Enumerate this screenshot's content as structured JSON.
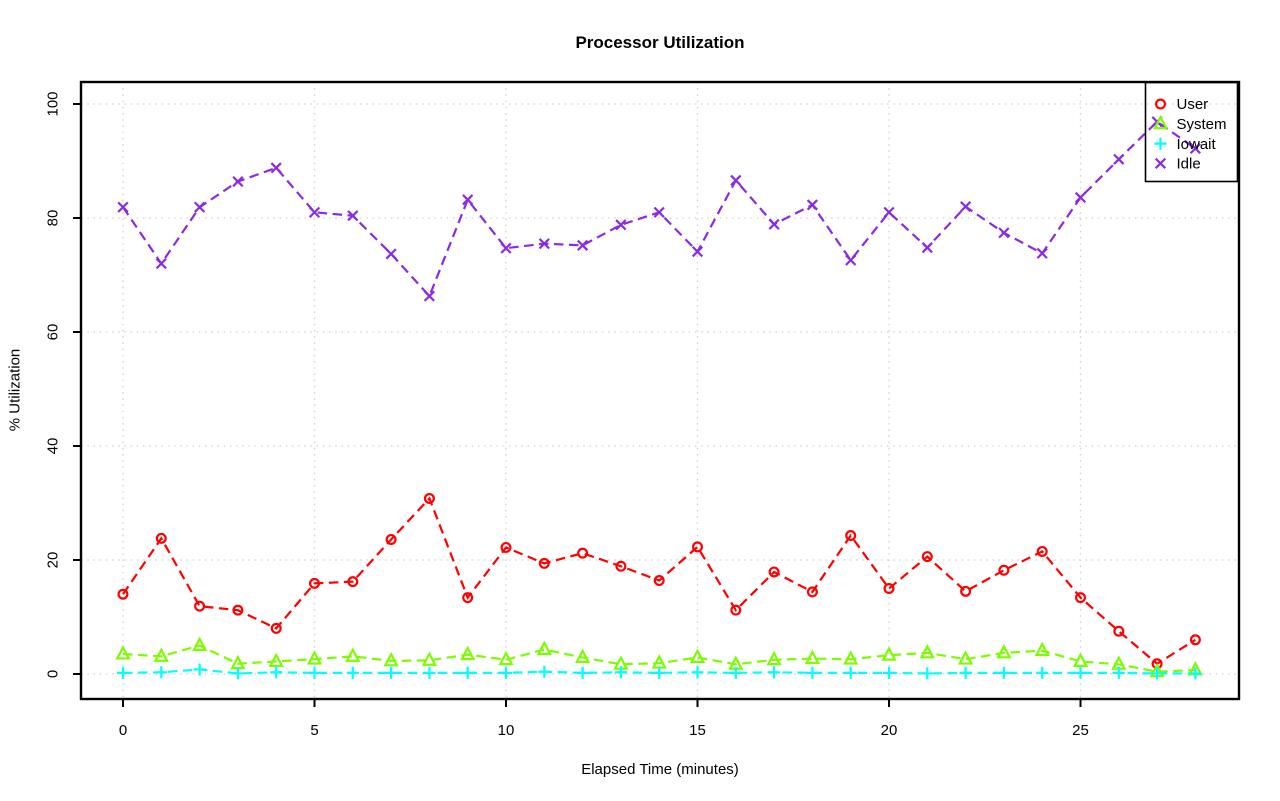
{
  "figure": {
    "title": "Processor Utilization",
    "x_axis_label": "Elapsed Time (minutes)",
    "y_axis_label": "% Utilization"
  },
  "colors": {
    "background": "#ffffff",
    "axis": "#000000",
    "grid": "#d2d2d2",
    "user": "#ff0000",
    "system": "#7cfc00",
    "iowait": "#00ffff",
    "idle": "#8a2be2"
  },
  "chart_data": {
    "type": "line",
    "title": "Processor Utilization",
    "xlabel": "Elapsed Time (minutes)",
    "ylabel": "% Utilization",
    "xlim": [
      0,
      28
    ],
    "ylim": [
      0,
      100
    ],
    "xticks": [
      0,
      5,
      10,
      15,
      20,
      25
    ],
    "yticks": [
      0,
      20,
      40,
      60,
      80,
      100
    ],
    "grid": true,
    "line_style": "dashed",
    "legend_position": "top-right",
    "x": [
      0,
      1,
      2,
      3,
      4,
      5,
      6,
      7,
      8,
      9,
      10,
      11,
      12,
      13,
      14,
      15,
      16,
      17,
      18,
      19,
      20,
      21,
      22,
      23,
      24,
      25,
      26,
      27,
      28
    ],
    "series": [
      {
        "name": "User",
        "color": "#ff0000",
        "marker": "circle",
        "values": [
          14.0,
          23.8,
          11.9,
          11.2,
          8.0,
          15.9,
          16.2,
          23.6,
          30.8,
          13.4,
          22.2,
          19.4,
          21.2,
          18.9,
          16.4,
          22.3,
          11.2,
          17.9,
          14.4,
          24.3,
          15.0,
          20.6,
          14.5,
          18.2,
          21.5,
          13.4,
          7.5,
          1.8,
          6.0
        ]
      },
      {
        "name": "System",
        "color": "#7cfc00",
        "marker": "triangle",
        "values": [
          3.5,
          3.1,
          5.0,
          1.8,
          2.2,
          2.6,
          3.1,
          2.3,
          2.4,
          3.4,
          2.5,
          4.3,
          2.9,
          1.7,
          1.9,
          2.9,
          1.7,
          2.5,
          2.7,
          2.6,
          3.3,
          3.7,
          2.6,
          3.7,
          4.1,
          2.2,
          1.7,
          0.4,
          0.7
        ]
      },
      {
        "name": "Iowait",
        "color": "#00ffff",
        "marker": "plus",
        "values": [
          0.2,
          0.3,
          0.8,
          0.1,
          0.3,
          0.2,
          0.2,
          0.2,
          0.2,
          0.2,
          0.2,
          0.4,
          0.2,
          0.3,
          0.2,
          0.3,
          0.2,
          0.3,
          0.2,
          0.2,
          0.2,
          0.1,
          0.2,
          0.2,
          0.2,
          0.2,
          0.2,
          0.1,
          0.1
        ]
      },
      {
        "name": "Idle",
        "color": "#8a2be2",
        "marker": "x",
        "values": [
          81.9,
          72.0,
          81.9,
          86.4,
          88.8,
          81.0,
          80.4,
          73.7,
          66.3,
          83.2,
          74.7,
          75.5,
          75.2,
          78.8,
          81.0,
          74.1,
          86.6,
          78.9,
          82.3,
          72.6,
          81.0,
          74.8,
          82.0,
          77.4,
          73.8,
          83.6,
          90.3,
          96.9,
          92.2
        ]
      }
    ],
    "legend_entries": [
      "User",
      "System",
      "Iowait",
      "Idle"
    ]
  }
}
